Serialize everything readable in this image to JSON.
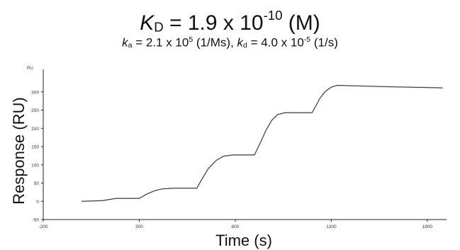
{
  "header": {
    "kd_symbol": "K",
    "kd_sub": "D",
    "kd_eq": " = 1.9 x 10",
    "kd_exp": "-10",
    "kd_unit": " (M)",
    "ka_symbol": "k",
    "ka_sub": "a",
    "ka_eq": " = 2.1 x 10",
    "ka_exp": "5",
    "ka_unit": " (1/Ms), ",
    "kdiss_symbol": "k",
    "kdiss_sub": "d",
    "kdiss_eq": " = 4.0 x 10",
    "kdiss_exp": "-5",
    "kdiss_unit": " (1/s)"
  },
  "chart_data": {
    "type": "line",
    "title": "",
    "xlabel": "Time (s)",
    "ylabel": "Response (RU)",
    "y_unit_label": "RU",
    "xlim": [
      -200,
      1900
    ],
    "ylim": [
      -50,
      350
    ],
    "x_ticks": [
      -200,
      300,
      800,
      1300,
      1800
    ],
    "y_ticks": [
      -50,
      0,
      50,
      100,
      150,
      200,
      250,
      300
    ],
    "grid": false,
    "colors": {
      "fit": "#3a3a3a",
      "data": "#7a5cc8"
    },
    "series": [
      {
        "x": [
          0,
          60,
          110,
          180,
          300,
          310,
          340,
          380,
          420,
          480,
          560,
          600,
          620,
          660,
          700,
          740,
          790,
          860,
          900,
          930,
          960,
          990,
          1020,
          1060,
          1100,
          1160,
          1200,
          1220,
          1240,
          1270,
          1300,
          1330,
          1400,
          1600,
          1800,
          1880
        ],
        "y": [
          0,
          1,
          2,
          8,
          8,
          11,
          20,
          29,
          34,
          36,
          36,
          36,
          55,
          90,
          112,
          124,
          127,
          127,
          127,
          160,
          195,
          222,
          238,
          243,
          243,
          243,
          243,
          262,
          282,
          302,
          313,
          318,
          317,
          314,
          312,
          311
        ]
      }
    ]
  }
}
